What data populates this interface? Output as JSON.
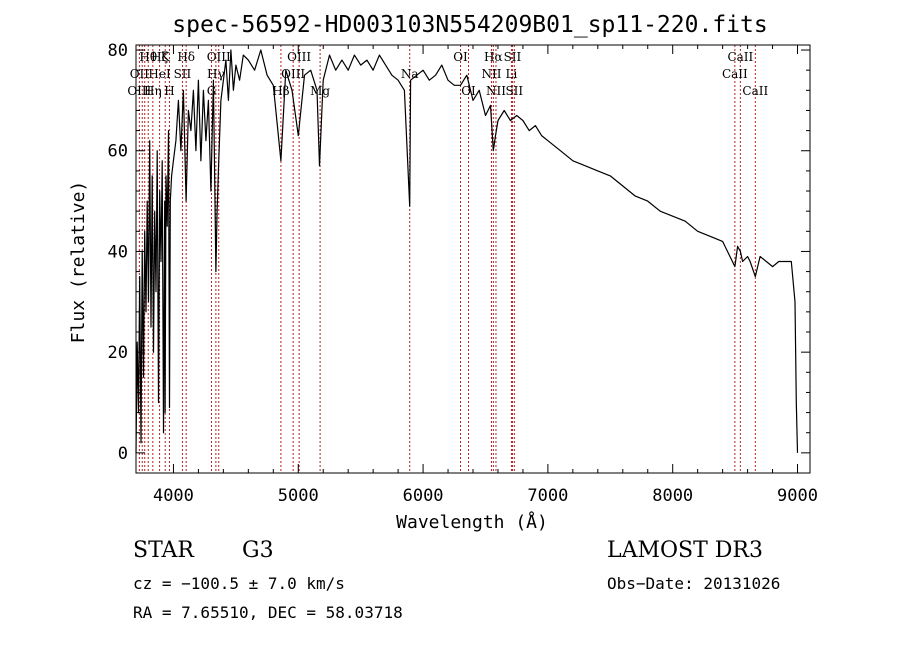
{
  "chart_data": {
    "type": "line",
    "title": "spec-56592-HD003103N554209B01_sp11-220.fits",
    "xlabel": "Wavelength (Å)",
    "ylabel": "Flux (relative)",
    "xlim": [
      3700,
      9100
    ],
    "ylim": [
      -4,
      81
    ],
    "xticks": [
      4000,
      5000,
      6000,
      7000,
      8000,
      9000
    ],
    "xtick_labels": [
      "4000",
      "5000",
      "6000",
      "7000",
      "8000",
      "9000"
    ],
    "yticks": [
      0,
      20,
      40,
      60,
      80
    ],
    "ytick_labels": [
      "0",
      "20",
      "40",
      "60",
      "80"
    ],
    "series": [
      {
        "name": "flux",
        "x": [
          3700,
          3710,
          3720,
          3730,
          3740,
          3750,
          3760,
          3770,
          3780,
          3790,
          3800,
          3810,
          3820,
          3830,
          3840,
          3850,
          3860,
          3870,
          3880,
          3890,
          3900,
          3910,
          3920,
          3930,
          3933,
          3940,
          3950,
          3960,
          3968,
          3975,
          3985,
          4000,
          4020,
          4040,
          4060,
          4080,
          4101,
          4120,
          4140,
          4160,
          4180,
          4200,
          4220,
          4240,
          4260,
          4280,
          4300,
          4320,
          4340,
          4350,
          4360,
          4380,
          4400,
          4420,
          4440,
          4460,
          4480,
          4500,
          4530,
          4560,
          4600,
          4650,
          4700,
          4750,
          4800,
          4861,
          4900,
          4950,
          5000,
          5050,
          5100,
          5150,
          5170,
          5200,
          5250,
          5300,
          5350,
          5400,
          5450,
          5500,
          5550,
          5600,
          5650,
          5700,
          5750,
          5800,
          5850,
          5893,
          5900,
          5950,
          6000,
          6050,
          6100,
          6150,
          6200,
          6250,
          6300,
          6350,
          6400,
          6450,
          6500,
          6540,
          6563,
          6580,
          6600,
          6650,
          6700,
          6750,
          6800,
          6850,
          6900,
          6950,
          7000,
          7100,
          7200,
          7300,
          7400,
          7500,
          7600,
          7700,
          7800,
          7900,
          8000,
          8100,
          8200,
          8300,
          8400,
          8498,
          8520,
          8542,
          8560,
          8600,
          8620,
          8662,
          8700,
          8750,
          8800,
          8850,
          8900,
          8950,
          8980,
          8990,
          9000
        ],
        "y": [
          0,
          22,
          8,
          35,
          2,
          40,
          15,
          44,
          28,
          50,
          30,
          62,
          25,
          55,
          20,
          48,
          32,
          60,
          10,
          52,
          38,
          58,
          4,
          50,
          8,
          55,
          45,
          64,
          9,
          50,
          55,
          58,
          62,
          70,
          60,
          72,
          50,
          68,
          64,
          72,
          60,
          74,
          58,
          72,
          62,
          70,
          52,
          74,
          36,
          48,
          56,
          70,
          74,
          78,
          70,
          80,
          72,
          77,
          74,
          79,
          78,
          76,
          80,
          75,
          73,
          58,
          76,
          72,
          63,
          75,
          76,
          72,
          57,
          74,
          79,
          76,
          78,
          76,
          79,
          77,
          78,
          76,
          79,
          77,
          75,
          74,
          72,
          49,
          74,
          75,
          76,
          74,
          75,
          77,
          74,
          73,
          73,
          75,
          70,
          72,
          67,
          69,
          60,
          63,
          66,
          68,
          66,
          67,
          66,
          64,
          65,
          63,
          62,
          60,
          58,
          57,
          56,
          55,
          53,
          51,
          50,
          48,
          47,
          46,
          44,
          43,
          42,
          37,
          41,
          40,
          38,
          39,
          38,
          35,
          39,
          38,
          37,
          38,
          38,
          38,
          30,
          10,
          0
        ]
      }
    ],
    "line_labels": [
      {
        "label": "OII",
        "wavelength": 3727,
        "row": 2
      },
      {
        "label": "OIII",
        "wavelength": 3727,
        "row": 3
      },
      {
        "label": "Hθ",
        "wavelength": 3798,
        "row": 1
      },
      {
        "label": "Hη",
        "wavelength": 3835,
        "row": 3
      },
      {
        "label": "Hζ",
        "wavelength": 3889,
        "row": 1
      },
      {
        "label": "HeI",
        "wavelength": 3889,
        "row": 2
      },
      {
        "label": "K",
        "wavelength": 3934,
        "row": 1
      },
      {
        "label": "SII",
        "wavelength": 4072,
        "row": 2
      },
      {
        "label": "H",
        "wavelength": 3968,
        "row": 3
      },
      {
        "label": "Hδ",
        "wavelength": 4102,
        "row": 1
      },
      {
        "label": "OIII",
        "wavelength": 4363,
        "row": 1
      },
      {
        "label": "Hγ",
        "wavelength": 4340,
        "row": 2
      },
      {
        "label": "G",
        "wavelength": 4305,
        "row": 3
      },
      {
        "label": "OIII",
        "wavelength": 5007,
        "row": 1
      },
      {
        "label": "OIII",
        "wavelength": 4959,
        "row": 2
      },
      {
        "label": "Hβ",
        "wavelength": 4861,
        "row": 3
      },
      {
        "label": "Mg",
        "wavelength": 5175,
        "row": 3
      },
      {
        "label": "Na",
        "wavelength": 5893,
        "row": 2
      },
      {
        "label": "OI",
        "wavelength": 6300,
        "row": 1
      },
      {
        "label": "OI",
        "wavelength": 6364,
        "row": 3
      },
      {
        "label": "Hα",
        "wavelength": 6563,
        "row": 1
      },
      {
        "label": "SII",
        "wavelength": 6716,
        "row": 1
      },
      {
        "label": "NII",
        "wavelength": 6548,
        "row": 2
      },
      {
        "label": "Li",
        "wavelength": 6708,
        "row": 2
      },
      {
        "label": "NII",
        "wavelength": 6584,
        "row": 3
      },
      {
        "label": "SII",
        "wavelength": 6731,
        "row": 3
      },
      {
        "label": "CaII",
        "wavelength": 8542,
        "row": 1
      },
      {
        "label": "CaII",
        "wavelength": 8498,
        "row": 2
      },
      {
        "label": "CaII",
        "wavelength": 8662,
        "row": 3
      }
    ],
    "marker_lines": [
      3727,
      3750,
      3770,
      3798,
      3835,
      3889,
      3934,
      3968,
      4072,
      4102,
      4305,
      4340,
      4363,
      4861,
      4959,
      5007,
      5175,
      5893,
      6300,
      6364,
      6548,
      6563,
      6584,
      6708,
      6716,
      6731,
      8498,
      8542,
      8662
    ]
  },
  "info": {
    "object_type": "STAR",
    "subclass": "G3",
    "survey": "LAMOST DR3",
    "cz": "cz = −100.5 ± 7.0 km/s",
    "obs_date": "Obs−Date: 20131026",
    "coords": "RA =   7.65510, DEC =  58.03718"
  },
  "colors": {
    "marker": "#b22222",
    "spectrum": "#000000"
  }
}
